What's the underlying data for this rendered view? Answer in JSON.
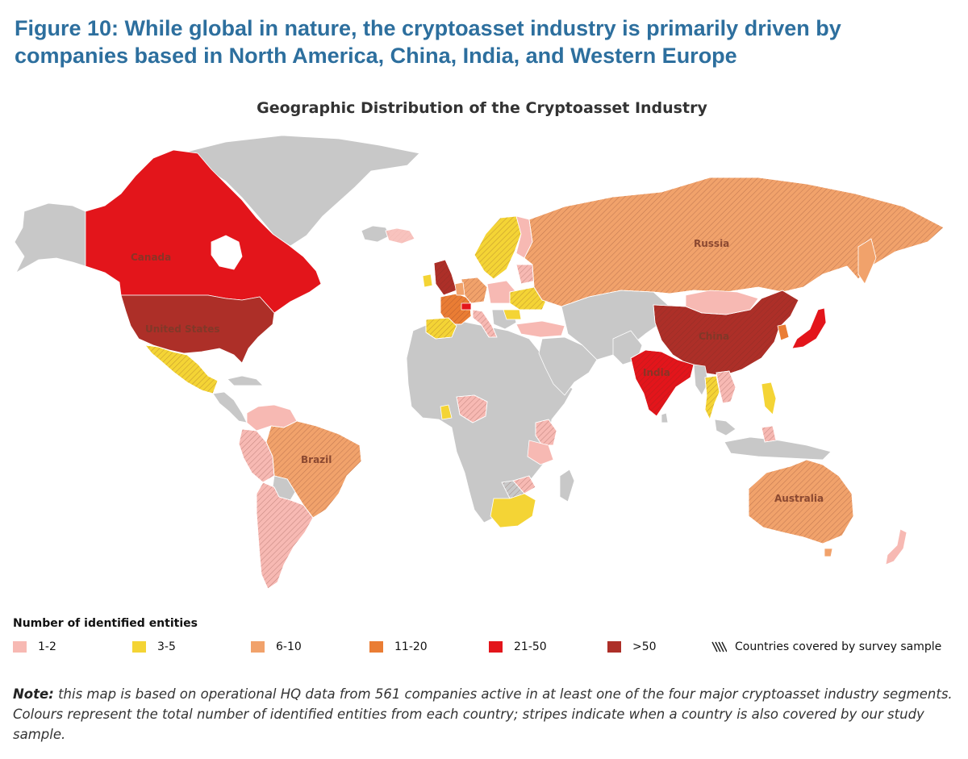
{
  "figure_title": "Figure 10: While global in nature, the cryptoasset industry is primarily driven by companies based in North America, China, India, and Western Europe",
  "map_title": "Geographic Distribution of the Cryptoasset Industry",
  "colors": {
    "no_data": "#c8c8c8",
    "c1_2": "#f7b9b3",
    "c3_5": "#f4d435",
    "c6_10": "#f1a26b",
    "c11_20": "#ea7d34",
    "c21_50": "#e3151b",
    "c50_plus": "#ad2f28",
    "ocean": "#ffffff"
  },
  "country_labels": {
    "canada": "Canada",
    "united_states": "United States",
    "brazil": "Brazil",
    "russia": "Russia",
    "china": "China",
    "india": "India",
    "australia": "Australia"
  },
  "legend": {
    "title": "Number of identified entities",
    "items": [
      {
        "label": "1-2",
        "color": "#f7b9b3"
      },
      {
        "label": "3-5",
        "color": "#f4d435"
      },
      {
        "label": "6-10",
        "color": "#f1a26b"
      },
      {
        "label": "11-20",
        "color": "#ea7d34"
      },
      {
        "label": "21-50",
        "color": "#e3151b"
      },
      {
        "label": ">50",
        "color": "#ad2f28"
      }
    ],
    "stripes_label": "Countries covered by survey sample"
  },
  "note": {
    "prefix": "Note:",
    "text": " this map is based on operational HQ data from 561 companies active in at least one of the four major cryptoasset industry segments. Colours represent the total number of identified entities from each country; stripes indicate when a country is also covered by our study sample."
  }
}
